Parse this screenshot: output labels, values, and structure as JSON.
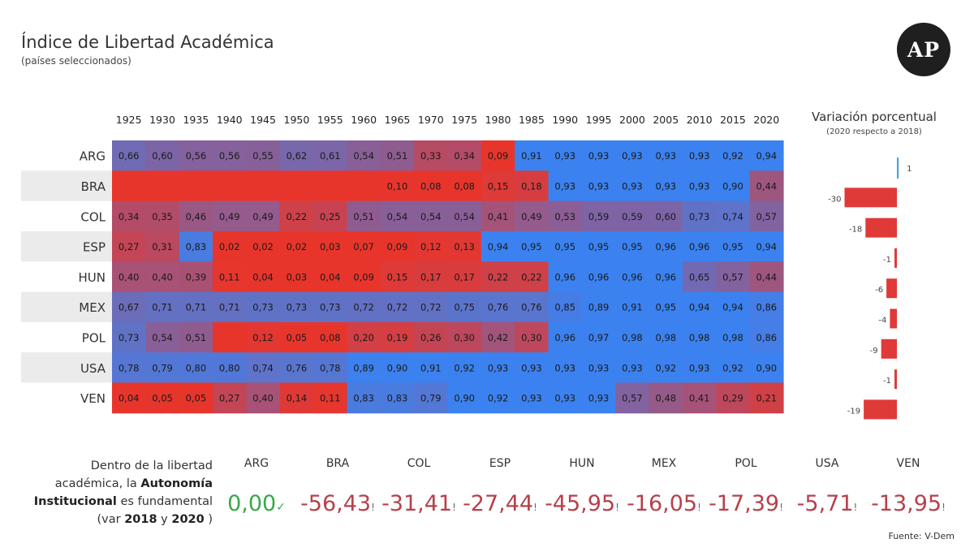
{
  "header": {
    "title": "Índice de Libertad Académica",
    "subtitle": "(países seleccionados)",
    "logo_text": "AP"
  },
  "chart_data": [
    {
      "type": "heatmap",
      "x": [
        "1925",
        "1930",
        "1935",
        "1940",
        "1945",
        "1950",
        "1955",
        "1960",
        "1965",
        "1970",
        "1975",
        "1980",
        "1985",
        "1990",
        "1995",
        "2000",
        "2005",
        "2010",
        "2015",
        "2020"
      ],
      "y": [
        "ARG",
        "BRA",
        "COL",
        "ESP",
        "HUN",
        "MEX",
        "POL",
        "USA",
        "VEN"
      ],
      "values": [
        [
          0.66,
          0.6,
          0.56,
          0.56,
          0.55,
          0.62,
          0.61,
          0.54,
          0.51,
          0.33,
          0.34,
          0.09,
          0.91,
          0.93,
          0.93,
          0.93,
          0.93,
          0.93,
          0.92,
          0.94
        ],
        [
          null,
          null,
          null,
          null,
          null,
          null,
          null,
          null,
          0.1,
          0.08,
          0.08,
          0.15,
          0.18,
          0.93,
          0.93,
          0.93,
          0.93,
          0.93,
          0.9,
          0.44
        ],
        [
          0.34,
          0.35,
          0.46,
          0.49,
          0.49,
          0.22,
          0.25,
          0.51,
          0.54,
          0.54,
          0.54,
          0.41,
          0.49,
          0.53,
          0.59,
          0.59,
          0.6,
          0.73,
          0.74,
          0.57
        ],
        [
          0.27,
          0.31,
          0.83,
          0.02,
          0.02,
          0.02,
          0.03,
          0.07,
          0.09,
          0.12,
          0.13,
          0.94,
          0.95,
          0.95,
          0.95,
          0.95,
          0.96,
          0.96,
          0.95,
          0.94
        ],
        [
          0.4,
          0.4,
          0.39,
          0.11,
          0.04,
          0.03,
          0.04,
          0.09,
          0.15,
          0.17,
          0.17,
          0.22,
          0.22,
          0.96,
          0.96,
          0.96,
          0.96,
          0.65,
          0.57,
          0.44
        ],
        [
          0.67,
          0.71,
          0.71,
          0.71,
          0.73,
          0.73,
          0.73,
          0.72,
          0.72,
          0.72,
          0.75,
          0.76,
          0.76,
          0.85,
          0.89,
          0.91,
          0.95,
          0.94,
          0.94,
          0.86
        ],
        [
          0.73,
          0.54,
          0.51,
          null,
          0.12,
          0.05,
          0.08,
          0.2,
          0.19,
          0.26,
          0.3,
          0.42,
          0.3,
          0.96,
          0.97,
          0.98,
          0.98,
          0.98,
          0.98,
          0.86
        ],
        [
          0.78,
          0.79,
          0.8,
          0.8,
          0.74,
          0.76,
          0.78,
          0.89,
          0.9,
          0.91,
          0.92,
          0.93,
          0.93,
          0.93,
          0.93,
          0.93,
          0.92,
          0.93,
          0.92,
          0.9
        ],
        [
          0.04,
          0.05,
          0.05,
          0.27,
          0.4,
          0.14,
          0.11,
          0.83,
          0.83,
          0.79,
          0.9,
          0.92,
          0.93,
          0.93,
          0.93,
          0.57,
          0.48,
          0.41,
          0.29,
          0.21
        ]
      ],
      "color_low": "#e8352c",
      "color_high": "#3b82f0",
      "row_stripe_color": "#ebebeb"
    },
    {
      "type": "bar",
      "title": "Variación porcentual",
      "subtitle": "(2020 respecto a 2018)",
      "categories": [
        "ARG",
        "BRA",
        "COL",
        "ESP",
        "HUN",
        "MEX",
        "POL",
        "USA",
        "VEN"
      ],
      "values": [
        1,
        -30,
        -18,
        -1,
        -6,
        -4,
        -9,
        -1,
        -19
      ],
      "positive_color": "#4aa3e0",
      "negative_color": "#e03a38"
    }
  ],
  "autonomy": {
    "line1": "Dentro de la libertad",
    "line2_prefix": "académica, la",
    "line2_bold": "Autonomía",
    "line3_bold": "Institucional",
    "line3_suffix": "es fundamental",
    "line4_prefix": "(var",
    "year1": "2018",
    "and": "y",
    "year2": "2020",
    "line4_suffix": ")",
    "items": [
      {
        "country": "ARG",
        "value": "0,00",
        "mark": "✓"
      },
      {
        "country": "BRA",
        "value": "-56,43",
        "mark": "!"
      },
      {
        "country": "COL",
        "value": "-31,41",
        "mark": "!"
      },
      {
        "country": "ESP",
        "value": "-27,44",
        "mark": "!"
      },
      {
        "country": "HUN",
        "value": "-45,95",
        "mark": "!"
      },
      {
        "country": "MEX",
        "value": "-16,05",
        "mark": "!"
      },
      {
        "country": "POL",
        "value": "-17,39",
        "mark": "!"
      },
      {
        "country": "USA",
        "value": "-5,71",
        "mark": "!"
      },
      {
        "country": "VEN",
        "value": "-13,95",
        "mark": "!"
      }
    ],
    "positive_color": "#3aa84a",
    "negative_color": "#b7404a"
  },
  "source": "Fuente: V-Dem"
}
